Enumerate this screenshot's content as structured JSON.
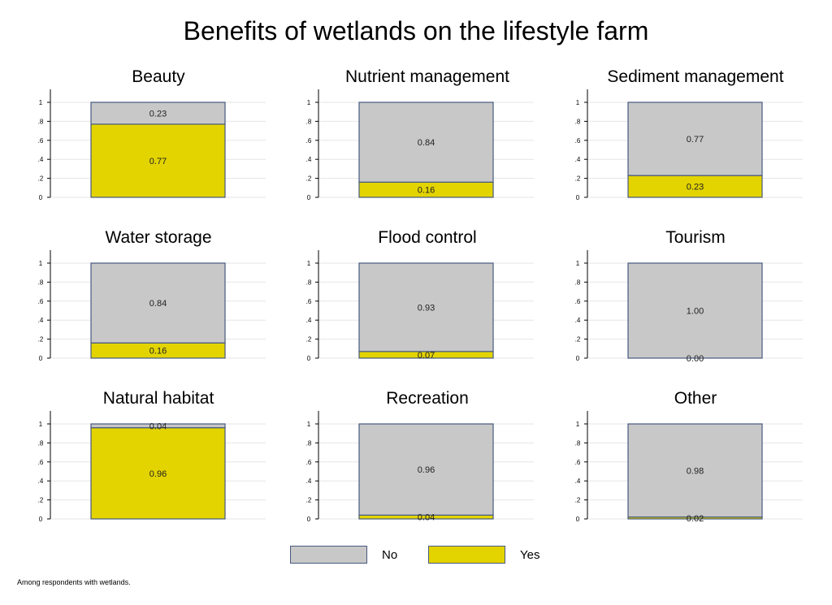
{
  "chart_data": {
    "type": "bar",
    "stacked": true,
    "title": "Benefits of wetlands on the lifestyle farm",
    "note": "Among respondents with wetlands.",
    "ylim": [
      0,
      1
    ],
    "y_ticks": [
      "0",
      ".2",
      ".4",
      ".6",
      ".8",
      "1"
    ],
    "grid": true,
    "legend": {
      "position": "bottom",
      "entries": [
        {
          "label": "No",
          "color": "#c8c8c8"
        },
        {
          "label": "Yes",
          "color": "#e3d400"
        }
      ]
    },
    "colors": {
      "no": "#c8c8c8",
      "yes": "#e3d400",
      "outline": "#47597f",
      "grid": "#e6e6e6"
    },
    "panels": [
      {
        "title": "Beauty",
        "yes": 0.77,
        "no": 0.23,
        "yes_label": "0.77",
        "no_label": "0.23"
      },
      {
        "title": "Nutrient management",
        "yes": 0.16,
        "no": 0.84,
        "yes_label": "0.16",
        "no_label": "0.84"
      },
      {
        "title": "Sediment management",
        "yes": 0.23,
        "no": 0.77,
        "yes_label": "0.23",
        "no_label": "0.77"
      },
      {
        "title": "Water storage",
        "yes": 0.16,
        "no": 0.84,
        "yes_label": "0.16",
        "no_label": "0.84"
      },
      {
        "title": "Flood control",
        "yes": 0.07,
        "no": 0.93,
        "yes_label": "0.07",
        "no_label": "0.93"
      },
      {
        "title": "Tourism",
        "yes": 0.0,
        "no": 1.0,
        "yes_label": "0.00",
        "no_label": "1.00"
      },
      {
        "title": "Natural habitat",
        "yes": 0.96,
        "no": 0.04,
        "yes_label": "0.96",
        "no_label": "0.04"
      },
      {
        "title": "Recreation",
        "yes": 0.04,
        "no": 0.96,
        "yes_label": "0.04",
        "no_label": "0.96"
      },
      {
        "title": "Other",
        "yes": 0.02,
        "no": 0.98,
        "yes_label": "0.02",
        "no_label": "0.98"
      }
    ]
  }
}
